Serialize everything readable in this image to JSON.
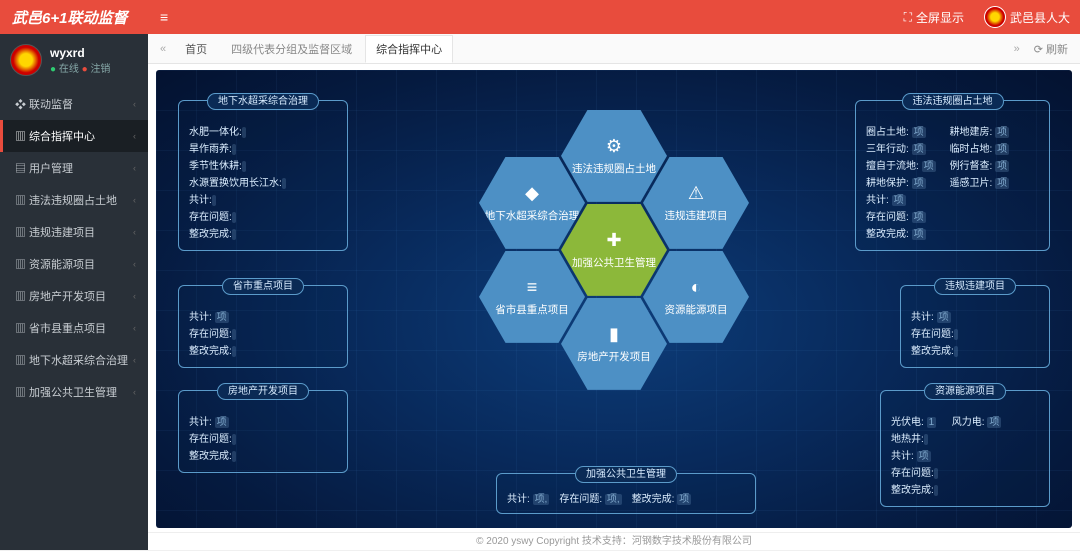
{
  "top": {
    "brand": "武邑6+1联动监督",
    "fullscreen": "全屏显示",
    "org": "武邑县人大"
  },
  "user": {
    "name": "wyxrd",
    "online": "在线",
    "logout": "注销"
  },
  "nav": [
    {
      "label": "联动监督",
      "icon": "❖"
    },
    {
      "label": "综合指挥中心",
      "icon": "▥",
      "active": true
    },
    {
      "label": "用户管理",
      "icon": "▤"
    },
    {
      "label": "违法违规圈占土地",
      "icon": "▥"
    },
    {
      "label": "违规违建项目",
      "icon": "▥"
    },
    {
      "label": "资源能源项目",
      "icon": "▥"
    },
    {
      "label": "房地产开发项目",
      "icon": "▥"
    },
    {
      "label": "省市县重点项目",
      "icon": "▥"
    },
    {
      "label": "地下水超采综合治理",
      "icon": "▥"
    },
    {
      "label": "加强公共卫生管理",
      "icon": "▥"
    }
  ],
  "tabs": {
    "home": "首页",
    "t1": "四级代表分组及监督区域",
    "t2": "综合指挥中心",
    "refresh": "刷新"
  },
  "hex": [
    {
      "label": "违法违规圈占土地",
      "icon": "⚙"
    },
    {
      "label": "地下水超采综合治理",
      "icon": "◆"
    },
    {
      "label": "违规违建项目",
      "icon": "⚠"
    },
    {
      "label": "加强公共卫生管理",
      "icon": "✚"
    },
    {
      "label": "省市县重点项目",
      "icon": "≡"
    },
    {
      "label": "资源能源项目",
      "icon": "◐"
    },
    {
      "label": "房地产开发项目",
      "icon": "▮"
    }
  ],
  "boxes": {
    "b1": {
      "title": "地下水超采综合治理",
      "rows": [
        [
          "水肥一体化:",
          ""
        ],
        [
          "旱作雨养:",
          ""
        ],
        [
          "季节性休耕:",
          ""
        ],
        [
          "水源置换饮用长江水:",
          ""
        ],
        [
          "共计:",
          ""
        ],
        [
          "存在问题:",
          ""
        ],
        [
          "整改完成:",
          ""
        ]
      ]
    },
    "b2": {
      "title": "省市重点项目",
      "rows": [
        [
          "共计:",
          "  项"
        ],
        [
          "存在问题:",
          ""
        ],
        [
          "整改完成:",
          ""
        ]
      ]
    },
    "b3": {
      "title": "房地产开发项目",
      "rows": [
        [
          "共计:",
          "  项"
        ],
        [
          "存在问题:",
          ""
        ],
        [
          "整改完成:",
          ""
        ]
      ]
    },
    "b4": {
      "title": "加强公共卫生管理",
      "rows": [
        [
          "共计:",
          "  项,"
        ],
        [
          "存在问题:",
          "  项,"
        ],
        [
          "整改完成:",
          "  项"
        ]
      ]
    },
    "b5": {
      "title": "违法违规圈占土地",
      "left": [
        [
          "圈占土地:",
          "  项"
        ],
        [
          "三年行动:",
          "  项"
        ],
        [
          "擅自于流地:",
          "  项"
        ],
        [
          "耕地保护:",
          "  项"
        ],
        [
          "共计:",
          "  项"
        ],
        [
          "存在问题:",
          "  项"
        ],
        [
          "整改完成:",
          "  项"
        ]
      ],
      "right": [
        [
          "耕地建房:",
          "  项"
        ],
        [
          "临时占地:",
          "  项"
        ],
        [
          "例行督查:",
          "  项"
        ],
        [
          "遥感卫片:",
          "  项"
        ]
      ]
    },
    "b6": {
      "title": "违规违建项目",
      "rows": [
        [
          "共计:",
          "  项"
        ],
        [
          "存在问题:",
          ""
        ],
        [
          "整改完成:",
          ""
        ]
      ]
    },
    "b7": {
      "title": "资源能源项目",
      "left": [
        [
          "光伏电:",
          "1"
        ],
        [
          "地热井:",
          ""
        ],
        [
          "共计:",
          "  项"
        ],
        [
          "存在问题:",
          ""
        ],
        [
          "整改完成:",
          ""
        ]
      ],
      "right": [
        [
          "风力电:",
          "  项"
        ]
      ]
    }
  },
  "footer": "© 2020 yswy Copyright 技术支持：河钢数字技术股份有限公司"
}
